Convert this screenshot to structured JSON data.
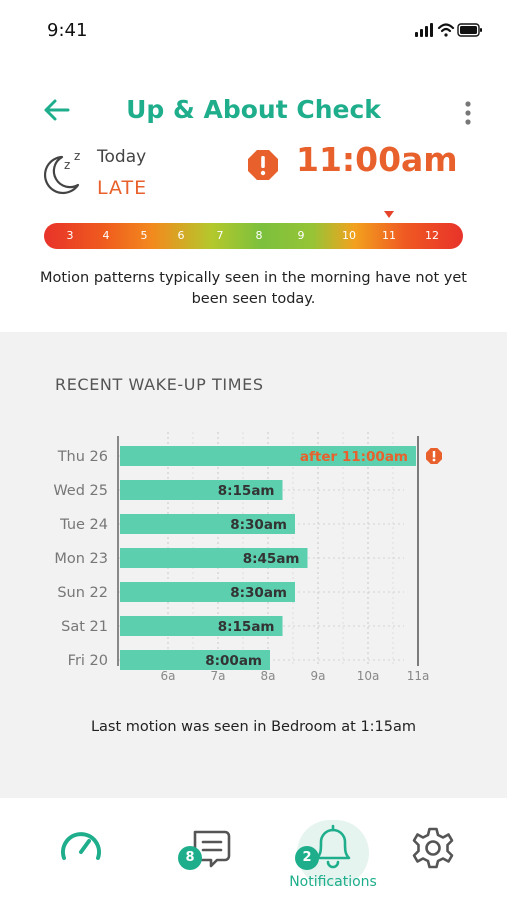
{
  "status_bar": {
    "time": "9:41"
  },
  "header": {
    "title": "Up & About Check"
  },
  "today": {
    "label": "Today",
    "status": "LATE",
    "wake_time": "11:00am"
  },
  "scale": {
    "ticks": [
      "3",
      "4",
      "5",
      "6",
      "7",
      "8",
      "9",
      "10",
      "11",
      "12"
    ],
    "current_hour": 11
  },
  "description": "Motion patterns typically seen in the morning have not yet been seen today.",
  "history": {
    "section_title": "RECENT WAKE-UP TIMES",
    "last_motion": "Last motion was seen in Bedroom at 1:15am"
  },
  "chart_data": {
    "type": "bar",
    "orientation": "horizontal",
    "title": "RECENT WAKE-UP TIMES",
    "categories": [
      "Thu 26",
      "Wed 25",
      "Tue 24",
      "Mon 23",
      "Sun 22",
      "Sat 21",
      "Fri 20"
    ],
    "values": [
      11.0,
      8.25,
      8.5,
      8.75,
      8.5,
      8.25,
      8.0
    ],
    "labels": [
      "after 11:00am",
      "8:15am",
      "8:30am",
      "8:45am",
      "8:30am",
      "8:15am",
      "8:00am"
    ],
    "x_ticks": [
      "6a",
      "7a",
      "8a",
      "9a",
      "10a",
      "11a"
    ],
    "x_tick_values": [
      6,
      7,
      8,
      9,
      10,
      11
    ],
    "xlim": [
      5,
      11
    ],
    "grid": true,
    "late_threshold": 11,
    "colors": {
      "bar": "#5ccfae",
      "label": "#333333",
      "late_label": "#e8612c",
      "threshold_line": "#555555"
    }
  },
  "tabs": [
    {
      "name": "gauge",
      "icon": "gauge-icon"
    },
    {
      "name": "messages",
      "icon": "chat-icon",
      "badge": "8"
    },
    {
      "name": "notifications",
      "icon": "bell-icon",
      "badge": "2",
      "label": "Notifications",
      "active": true
    },
    {
      "name": "settings",
      "icon": "gear-icon"
    }
  ],
  "colors": {
    "accent": "#1fae8c",
    "alert": "#e8612c"
  }
}
